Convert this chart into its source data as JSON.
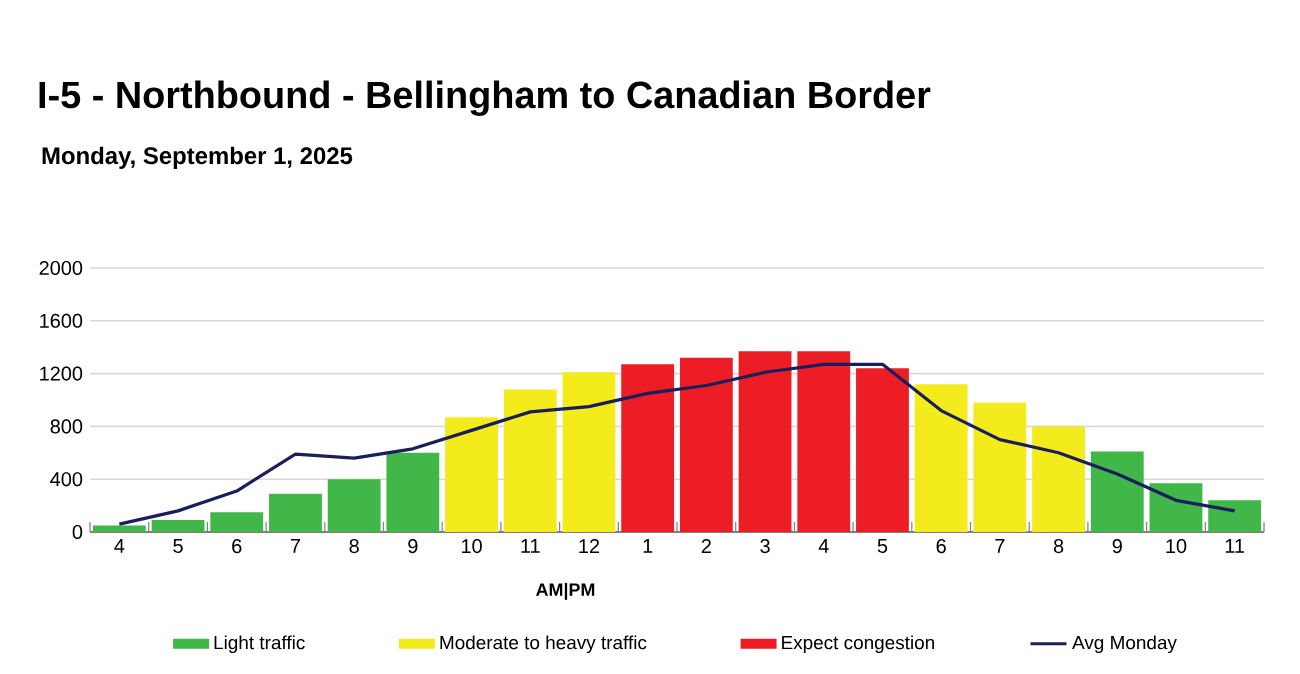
{
  "chart_data": {
    "type": "bar",
    "title": "I-5 - Northbound - Bellingham to Canadian Border",
    "subtitle": "Monday, September 1, 2025",
    "categories": [
      "4",
      "5",
      "6",
      "7",
      "8",
      "9",
      "10",
      "11",
      "12",
      "1",
      "2",
      "3",
      "4",
      "5",
      "6",
      "7",
      "8",
      "9",
      "10",
      "11"
    ],
    "series": [
      {
        "name": "Light traffic",
        "color": "#41b649",
        "values": [
          50,
          90,
          150,
          290,
          400,
          600,
          null,
          null,
          null,
          null,
          null,
          null,
          null,
          null,
          null,
          null,
          null,
          610,
          370,
          240
        ]
      },
      {
        "name": "Moderate to heavy traffic",
        "color": "#f3eb1c",
        "values": [
          null,
          null,
          null,
          null,
          null,
          null,
          870,
          1080,
          1210,
          null,
          null,
          null,
          null,
          null,
          1120,
          980,
          800,
          null,
          null,
          null
        ]
      },
      {
        "name": "Expect congestion",
        "color": "#ec1d25",
        "values": [
          null,
          null,
          null,
          null,
          null,
          null,
          null,
          null,
          null,
          1270,
          1320,
          1370,
          1370,
          1240,
          null,
          null,
          null,
          null,
          null,
          null
        ]
      },
      {
        "name": "Avg Monday",
        "type": "line",
        "color": "#1b1e5c",
        "values": [
          60,
          160,
          310,
          590,
          560,
          630,
          770,
          910,
          950,
          1050,
          1110,
          1210,
          1270,
          1270,
          920,
          700,
          600,
          440,
          240,
          160
        ]
      }
    ],
    "ylim": [
      0,
      2000
    ],
    "yticks": [
      0,
      400,
      800,
      1200,
      1600,
      2000
    ],
    "grid": "y",
    "legend": "bottom",
    "marker": "none",
    "annotations": [
      "AM|PM"
    ]
  }
}
